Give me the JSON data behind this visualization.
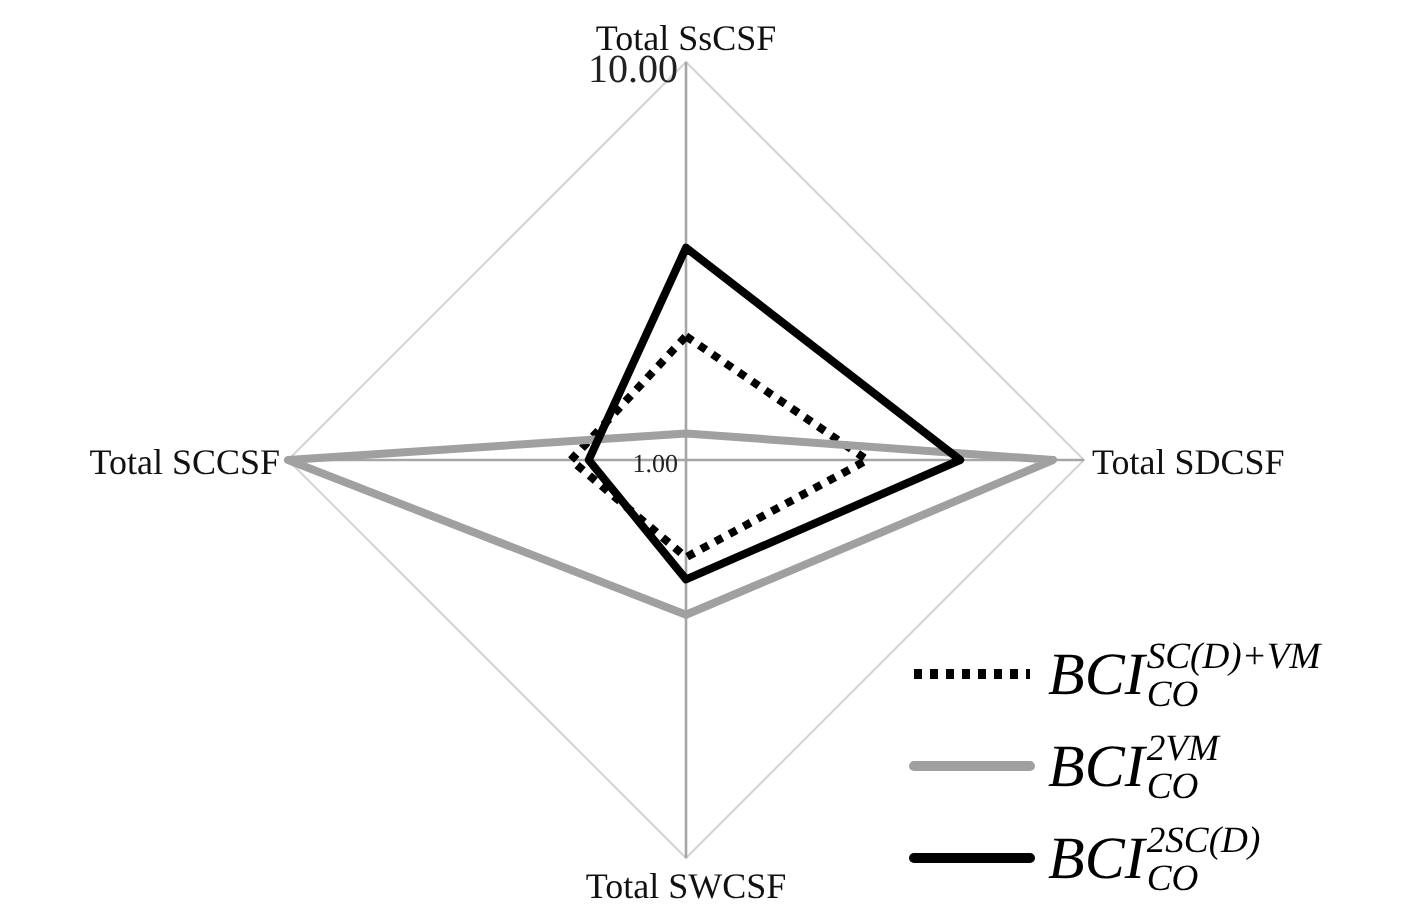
{
  "chart_data": {
    "type": "radar",
    "categories": [
      "Total SsCSF",
      "Total SDCSF",
      "Total SWCSF",
      "Total SCCSF"
    ],
    "series": [
      {
        "name": "BCI$_{CO}$$^{SC(D)+VM}$",
        "color": "#000000",
        "line_style": "dotted",
        "values": [
          3.8,
          5.1,
          3.2,
          3.6
        ]
      },
      {
        "name": "BCI$_{CO}$$^{2VM}$",
        "color": "#a0a0a0",
        "line_style": "solid",
        "values": [
          1.6,
          9.3,
          4.5,
          10
        ]
      },
      {
        "name": "BCI$_{CO}$$^{2SC(D)}$",
        "color": "#000000",
        "line_style": "solid",
        "values": [
          5.8,
          7.2,
          3.7,
          3.2
        ]
      }
    ],
    "ylim": [
      1,
      10
    ],
    "yticks": [
      {
        "value": 1,
        "label": "1.00"
      },
      {
        "value": 10,
        "label": "10.00"
      }
    ],
    "grid": true,
    "legend": "bottom right"
  }
}
